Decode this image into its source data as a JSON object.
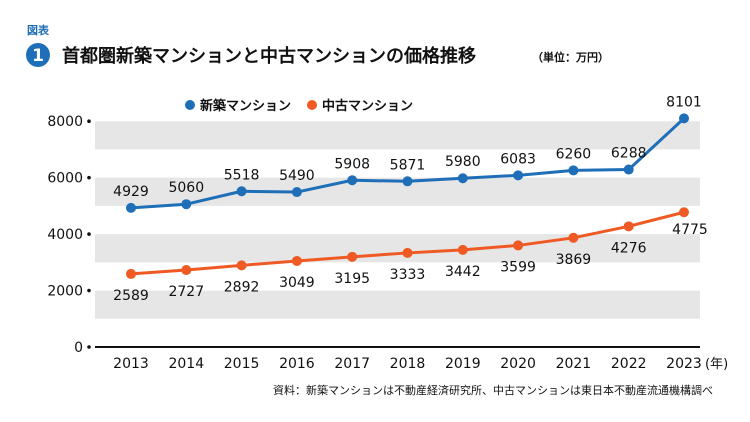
{
  "header": {
    "figure_tag": "図表",
    "figure_number": "1",
    "title": "首都圏新築マンションと中古マンションの価格推移",
    "unit": "（単位：万円）"
  },
  "chart_data": {
    "type": "line",
    "title": "首都圏新築マンションと中古マンションの価格推移",
    "unit_label": "（単位：万円）",
    "categories": [
      "2013",
      "2014",
      "2015",
      "2016",
      "2017",
      "2018",
      "2019",
      "2020",
      "2021",
      "2022",
      "2023"
    ],
    "x_unit": "(年)",
    "ylim": [
      0,
      9000
    ],
    "yticks": [
      0,
      2000,
      4000,
      6000,
      8000
    ],
    "grid": "alternating horizontal bands",
    "legend_position": "top-left",
    "series": [
      {
        "name": "新築マンション",
        "color": "#1f6fb8",
        "values": [
          4929,
          5060,
          5518,
          5490,
          5908,
          5871,
          5980,
          6083,
          6260,
          6288,
          8101
        ]
      },
      {
        "name": "中古マンション",
        "color": "#ef5a24",
        "values": [
          2589,
          2727,
          2892,
          3049,
          3195,
          3333,
          3442,
          3599,
          3869,
          4276,
          4775
        ]
      }
    ]
  },
  "footer": {
    "source": "資料：新築マンションは不動産経済研究所、中古マンションは東日本不動産流通機構調べ"
  }
}
